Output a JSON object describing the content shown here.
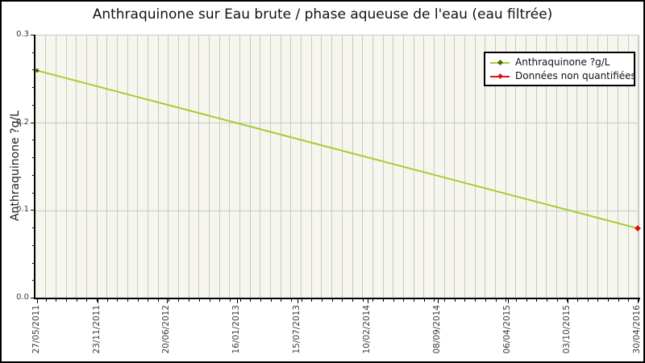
{
  "title": "Anthraquinone sur Eau brute / phase aqueuse de l'eau (eau filtrée)",
  "colors": {
    "line": "#a6cc32",
    "start_marker": "#436b00",
    "unquantified": "#e01010",
    "plot_bg": "#f6f6ee",
    "grid": "#c9c9c9",
    "axis": "#000000",
    "tick_text": "#3a3a3a"
  },
  "legend": {
    "items": [
      {
        "label": "Anthraquinone ?g/L",
        "line_color": "#a6cc32",
        "marker_color": "#436b00"
      },
      {
        "label": "Données non quantifiées",
        "line_color": "#e01010",
        "marker_color": "#e01010"
      }
    ]
  },
  "chart_data": {
    "type": "line",
    "title": "Anthraquinone sur Eau brute / phase aqueuse de l'eau (eau filtrée)",
    "xlabel": "",
    "ylabel": "Anthraquinone ?g/L",
    "ylim": [
      0.0,
      0.3
    ],
    "yticks": [
      0.0,
      0.1,
      0.2,
      0.3
    ],
    "ytick_labels": [
      "0.0",
      "0.1",
      "0.2",
      "0.3"
    ],
    "y_minor_step": 0.02,
    "xticklabels": [
      "27/05/2011",
      "23/11/2011",
      "20/06/2012",
      "16/01/2013",
      "15/07/2013",
      "10/02/2014",
      "08/09/2014",
      "06/04/2015",
      "03/10/2015",
      "30/04/2016"
    ],
    "x_minor_divisions": 59,
    "grid": true,
    "legend_position": "top-right",
    "series": [
      {
        "name": "Anthraquinone ?g/L",
        "color": "#a6cc32",
        "x": [
          "27/05/2011",
          "30/04/2016"
        ],
        "values": [
          0.26,
          0.08
        ]
      }
    ],
    "annotations": [
      {
        "type": "unquantified-point",
        "label": "Données non quantifiées",
        "x": "30/04/2016",
        "value": 0.08,
        "color": "#e01010",
        "marker": "diamond"
      }
    ]
  }
}
